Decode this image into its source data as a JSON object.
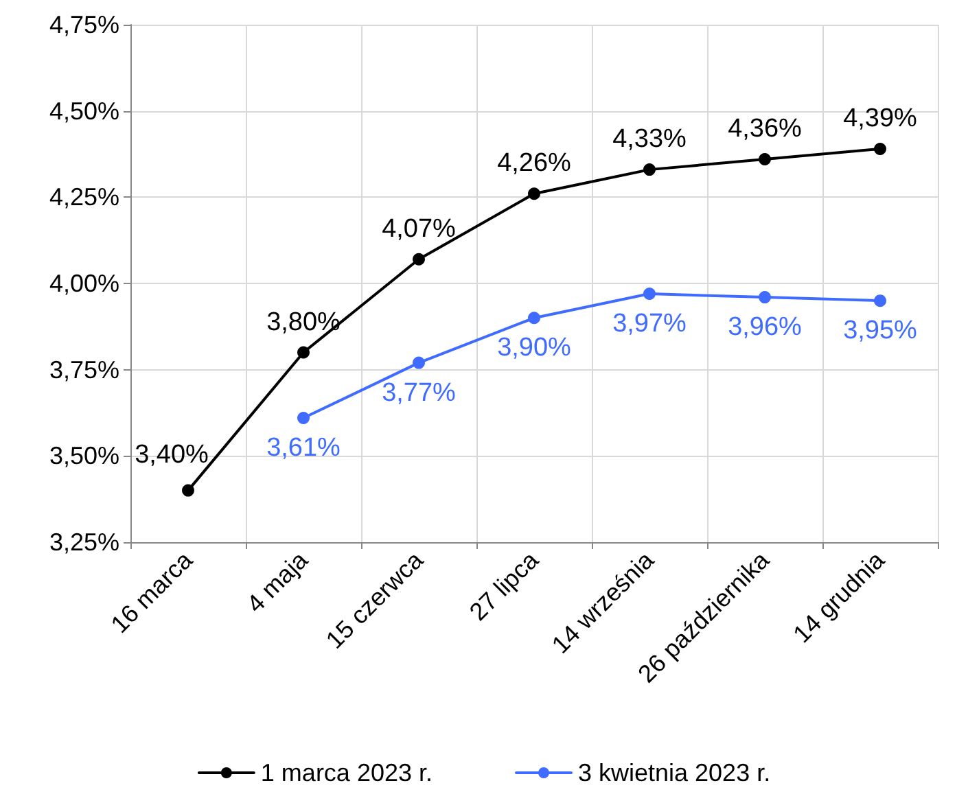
{
  "chart_data": {
    "type": "line",
    "categories": [
      "16 marca",
      "4 maja",
      "15 czerwca",
      "27 lipca",
      "14 września",
      "26 października",
      "14 grudnia"
    ],
    "series": [
      {
        "name": "1 marca 2023 r.",
        "color": "#000000",
        "values": [
          3.4,
          3.8,
          4.07,
          4.26,
          4.33,
          4.36,
          4.39
        ],
        "value_labels": [
          "3,40%",
          "3,80%",
          "4,07%",
          "4,26%",
          "4,33%",
          "4,36%",
          "4,39%"
        ]
      },
      {
        "name": "3 kwietnia 2023 r.",
        "color": "#3f6cff",
        "values": [
          null,
          3.61,
          3.77,
          3.9,
          3.97,
          3.96,
          3.95
        ],
        "value_labels": [
          null,
          "3,61%",
          "3,77%",
          "3,90%",
          "3,97%",
          "3,96%",
          "3,95%"
        ]
      }
    ],
    "ylim": [
      3.25,
      4.75
    ],
    "yticks": [
      {
        "value": 3.25,
        "label": "3,25%"
      },
      {
        "value": 3.5,
        "label": "3,50%"
      },
      {
        "value": 3.75,
        "label": "3,75%"
      },
      {
        "value": 4.0,
        "label": "4,00%"
      },
      {
        "value": 4.25,
        "label": "4,25%"
      },
      {
        "value": 4.5,
        "label": "4,50%"
      },
      {
        "value": 4.75,
        "label": "4,75%"
      }
    ],
    "grid": true,
    "legend": "bottom",
    "marker": "circle",
    "line_style": "solid"
  }
}
